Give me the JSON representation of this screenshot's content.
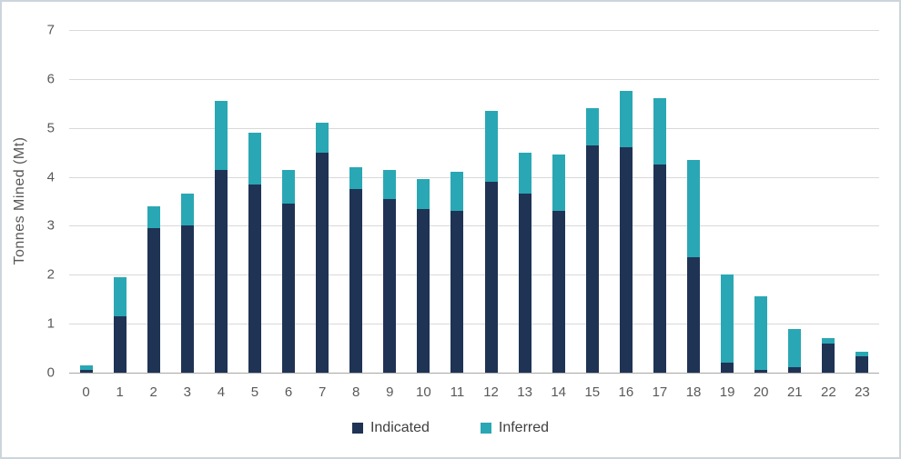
{
  "chart_data": {
    "type": "bar",
    "stacked": true,
    "title": "",
    "xlabel": "",
    "ylabel": "Tonnes Mined (Mt)",
    "ylim": [
      0,
      7
    ],
    "yticks": [
      0,
      1,
      2,
      3,
      4,
      5,
      6,
      7
    ],
    "grid": true,
    "legend_position": "bottom",
    "categories": [
      "0",
      "1",
      "2",
      "3",
      "4",
      "5",
      "6",
      "7",
      "8",
      "9",
      "10",
      "11",
      "12",
      "13",
      "14",
      "15",
      "16",
      "17",
      "18",
      "19",
      "20",
      "21",
      "22",
      "23"
    ],
    "series": [
      {
        "name": "Indicated",
        "color": "#1F3355",
        "values": [
          0.05,
          1.15,
          2.95,
          3.0,
          4.15,
          3.85,
          3.45,
          4.5,
          3.75,
          3.55,
          3.35,
          3.3,
          3.9,
          3.65,
          3.3,
          4.65,
          4.6,
          4.25,
          2.35,
          0.2,
          0.06,
          0.11,
          0.6,
          0.33
        ]
      },
      {
        "name": "Inferred",
        "color": "#2AA7B4",
        "values": [
          0.1,
          0.8,
          0.45,
          0.65,
          1.4,
          1.05,
          0.7,
          0.6,
          0.45,
          0.6,
          0.6,
          0.8,
          1.45,
          0.85,
          1.15,
          0.75,
          1.15,
          1.35,
          2.0,
          1.8,
          1.5,
          0.78,
          0.11,
          0.1
        ]
      }
    ]
  }
}
